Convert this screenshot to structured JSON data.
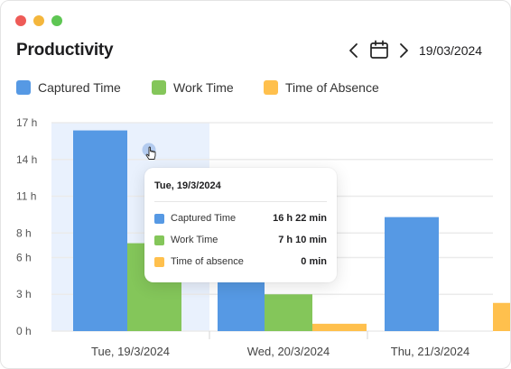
{
  "window": {
    "title": "Productivity"
  },
  "date_nav": {
    "date": "19/03/2024",
    "prev_icon": "chevron-left-icon",
    "calendar_icon": "calendar-icon",
    "next_icon": "chevron-right-icon"
  },
  "colors": {
    "captured": "#5699e4",
    "work": "#84c65a",
    "absence": "#ffc04d",
    "highlight": "#e9f1fd",
    "grid": "#ebebeb",
    "axis_text": "#555555"
  },
  "legend": [
    {
      "label": "Captured Time",
      "color": "#5699e4"
    },
    {
      "label": "Work Time",
      "color": "#84c65a"
    },
    {
      "label": "Time of Absence",
      "color": "#ffc04d"
    }
  ],
  "chart_data": {
    "type": "bar",
    "categories": [
      "Tue, 19/3/2024",
      "Wed, 20/3/2024",
      "Thu, 21/3/2024"
    ],
    "series": [
      {
        "name": "Captured Time",
        "values": [
          16.37,
          4,
          9.3
        ]
      },
      {
        "name": "Work Time",
        "values": [
          7.17,
          3,
          0
        ]
      },
      {
        "name": "Time of Absence",
        "values": [
          0,
          0.6,
          2.3
        ]
      }
    ],
    "yticks": [
      "0 h",
      "3 h",
      "6 h",
      "8 h",
      "11 h",
      "14 h",
      "17 h"
    ],
    "ytick_values": [
      0,
      3,
      6,
      8,
      11,
      14,
      17
    ],
    "ylim": [
      0,
      17
    ],
    "grid": true,
    "highlighted_category": "Tue, 19/3/2024"
  },
  "tooltip": {
    "title": "Tue, 19/3/2024",
    "rows": [
      {
        "label": "Captured Time",
        "value": "16 h 22 min",
        "color": "#5699e4"
      },
      {
        "label": "Work Time",
        "value": "7 h 10 min",
        "color": "#84c65a"
      },
      {
        "label": "Time of absence",
        "value": "0 min",
        "color": "#ffc04d"
      }
    ]
  }
}
